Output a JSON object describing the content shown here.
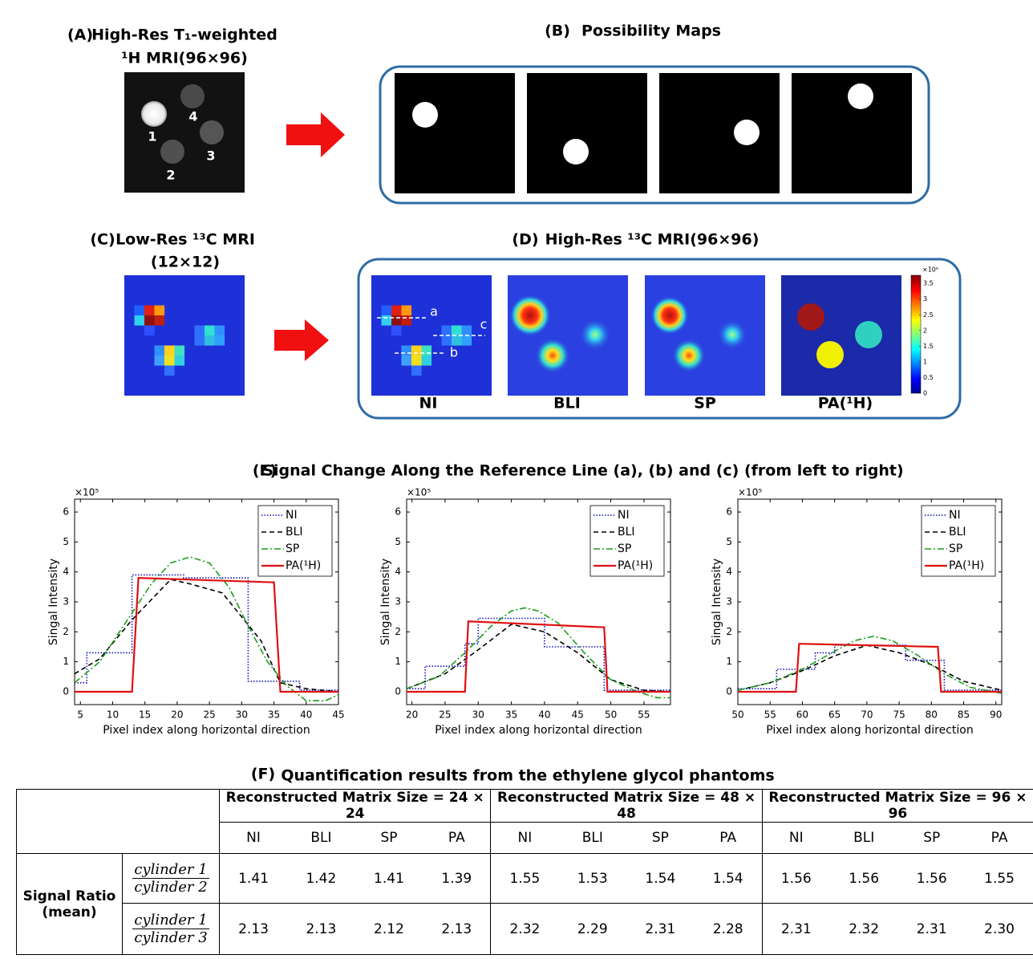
{
  "panels": {
    "a": {
      "label": "(A)",
      "title": [
        "High-Res T₁-weighted",
        "¹H MRI(96×96)"
      ],
      "cylinder_labels": [
        "1",
        "2",
        "3",
        "4"
      ]
    },
    "b": {
      "label": "(B)",
      "title": "Possibility Maps"
    },
    "c": {
      "label": "(C)",
      "title": [
        "Low-Res ¹³C MRI",
        "(12×12)"
      ]
    },
    "d": {
      "label": "(D)",
      "title": "High-Res ¹³C MRI(96×96)",
      "methods": [
        "NI",
        "BLI",
        "SP",
        "PA(¹H)"
      ],
      "line_labels": [
        "a",
        "b",
        "c"
      ],
      "colorbar": {
        "multiplier": "×10⁵",
        "range": [
          0,
          3.76
        ],
        "ticks": [
          0,
          0.5,
          1,
          1.5,
          2,
          2.5,
          3,
          3.5
        ]
      }
    },
    "e": {
      "label": "(E)",
      "title": "Signal Change Along the Reference Line (a), (b) and (c) (from left to right)"
    },
    "f": {
      "label": "(F)",
      "title": "Quantification results from the ethylene glycol phantoms"
    }
  },
  "chart_data": [
    {
      "type": "line",
      "x_label": "Pixel index along horizontal direction",
      "y_label": "Singal Intensity",
      "y_multiplier": "×10⁵",
      "xlim": [
        4.1,
        45
      ],
      "ylim": [
        -0.43,
        6.43
      ],
      "xticks": [
        5,
        10,
        15,
        20,
        25,
        30,
        35,
        40,
        45
      ],
      "yticks": [
        0,
        1,
        2,
        3,
        4,
        5,
        6
      ],
      "legend": "upper right",
      "series": [
        {
          "name": "NI",
          "color": "#1010c0",
          "style": "dotted",
          "x": [
            4.1,
            6,
            6,
            13,
            13,
            21,
            21,
            31,
            31,
            39,
            39,
            45
          ],
          "values": [
            0.3,
            0.3,
            1.3,
            1.3,
            3.9,
            3.9,
            3.8,
            3.8,
            0.35,
            0.35,
            0.05,
            0.05
          ]
        },
        {
          "name": "BLI",
          "color": "#000000",
          "style": "dashed",
          "x": [
            4.1,
            8,
            13,
            19,
            22,
            27,
            33,
            36,
            40,
            45
          ],
          "values": [
            0.6,
            1.1,
            2.4,
            3.75,
            3.6,
            3.3,
            1.7,
            0.3,
            0.1,
            0
          ]
        },
        {
          "name": "SP",
          "color": "#1a9e1a",
          "style": "dashdot",
          "x": [
            4.1,
            8,
            12,
            16,
            19,
            22,
            25,
            28,
            31,
            34,
            37,
            40,
            43,
            45
          ],
          "values": [
            0.3,
            1.0,
            2.3,
            3.6,
            4.3,
            4.5,
            4.3,
            3.5,
            2.2,
            1.0,
            0.2,
            -0.3,
            -0.3,
            -0.1
          ]
        },
        {
          "name": "PA(¹H)",
          "color": "#e01010",
          "style": "solid",
          "x": [
            4.1,
            13,
            14,
            35,
            36,
            45
          ],
          "values": [
            0,
            0,
            3.8,
            3.65,
            0,
            0
          ]
        }
      ]
    },
    {
      "type": "line",
      "x_label": "Pixel index along horizontal direction",
      "y_label": "Singal Intensity",
      "y_multiplier": "×10⁵",
      "xlim": [
        19.2,
        59
      ],
      "ylim": [
        -0.43,
        6.43
      ],
      "xticks": [
        20,
        25,
        30,
        35,
        40,
        45,
        50,
        55
      ],
      "yticks": [
        0,
        1,
        2,
        3,
        4,
        5,
        6
      ],
      "legend": "upper right",
      "series": [
        {
          "name": "NI",
          "color": "#1010c0",
          "style": "dotted",
          "x": [
            19.2,
            22,
            22,
            28,
            28,
            30,
            30,
            40,
            40,
            49,
            49,
            59
          ],
          "values": [
            0.1,
            0.1,
            0.85,
            0.85,
            1.6,
            1.6,
            2.45,
            2.45,
            1.5,
            1.5,
            0.05,
            0.05
          ]
        },
        {
          "name": "BLI",
          "color": "#000000",
          "style": "dashed",
          "x": [
            19.2,
            25,
            30,
            35,
            40,
            45,
            50,
            55,
            59
          ],
          "values": [
            0.1,
            0.6,
            1.4,
            2.25,
            2.0,
            1.3,
            0.4,
            0.05,
            0
          ]
        },
        {
          "name": "SP",
          "color": "#1a9e1a",
          "style": "dashdot",
          "x": [
            19.2,
            24,
            28,
            32,
            35,
            37,
            39,
            42,
            46,
            50,
            54,
            57,
            59
          ],
          "values": [
            0.1,
            0.5,
            1.3,
            2.2,
            2.7,
            2.8,
            2.7,
            2.3,
            1.3,
            0.4,
            0,
            -0.2,
            -0.2
          ]
        },
        {
          "name": "PA(¹H)",
          "color": "#e01010",
          "style": "solid",
          "x": [
            19.2,
            28,
            28.5,
            49,
            49.5,
            59
          ],
          "values": [
            0,
            0,
            2.35,
            2.15,
            0,
            0
          ]
        }
      ]
    },
    {
      "type": "line",
      "x_label": "Pixel index along horizontal direction",
      "y_label": "Singal Intensity",
      "y_multiplier": "×10⁵",
      "xlim": [
        50,
        90.9
      ],
      "ylim": [
        -0.43,
        6.43
      ],
      "xticks": [
        50,
        55,
        60,
        65,
        70,
        75,
        80,
        85,
        90
      ],
      "yticks": [
        0,
        1,
        2,
        3,
        4,
        5,
        6
      ],
      "legend": "upper right",
      "series": [
        {
          "name": "NI",
          "color": "#1010c0",
          "style": "dotted",
          "x": [
            50,
            56,
            56,
            62,
            62,
            65,
            65,
            76,
            76,
            82,
            82,
            90.9
          ],
          "values": [
            0.1,
            0.1,
            0.75,
            0.75,
            1.3,
            1.3,
            1.55,
            1.55,
            1.05,
            1.05,
            0.05,
            0.05
          ]
        },
        {
          "name": "BLI",
          "color": "#000000",
          "style": "dashed",
          "x": [
            50,
            55,
            60,
            65,
            70,
            75,
            80,
            85,
            90.9
          ],
          "values": [
            0.05,
            0.3,
            0.7,
            1.2,
            1.55,
            1.3,
            0.9,
            0.35,
            0.05
          ]
        },
        {
          "name": "SP",
          "color": "#1a9e1a",
          "style": "dashdot",
          "x": [
            50,
            55,
            60,
            65,
            68,
            71,
            74,
            78,
            82,
            86,
            90.9
          ],
          "values": [
            0.05,
            0.3,
            0.75,
            1.35,
            1.7,
            1.85,
            1.7,
            1.2,
            0.6,
            0.15,
            -0.05
          ]
        },
        {
          "name": "PA(¹H)",
          "color": "#e01010",
          "style": "solid",
          "x": [
            50,
            59,
            59.5,
            81,
            81.5,
            90.9
          ],
          "values": [
            0,
            0,
            1.6,
            1.5,
            0,
            0
          ]
        }
      ]
    }
  ],
  "table": {
    "col_groups": [
      "Reconstructed Matrix Size = 24 × 24",
      "Reconstructed Matrix Size = 48 × 48",
      "Reconstructed Matrix Size = 96 × 96"
    ],
    "methods": [
      "NI",
      "BLI",
      "SP",
      "PA"
    ],
    "row_header": [
      "Signal Ratio",
      "(mean)"
    ],
    "rows": [
      {
        "numerator": "cylinder 1",
        "denominator": "cylinder 2",
        "values": [
          "1.41",
          "1.42",
          "1.41",
          "1.39",
          "1.55",
          "1.53",
          "1.54",
          "1.54",
          "1.56",
          "1.56",
          "1.56",
          "1.55"
        ]
      },
      {
        "numerator": "cylinder 1",
        "denominator": "cylinder 3",
        "values": [
          "2.13",
          "2.13",
          "2.12",
          "2.13",
          "2.32",
          "2.29",
          "2.31",
          "2.28",
          "2.31",
          "2.32",
          "2.31",
          "2.30"
        ]
      }
    ]
  }
}
